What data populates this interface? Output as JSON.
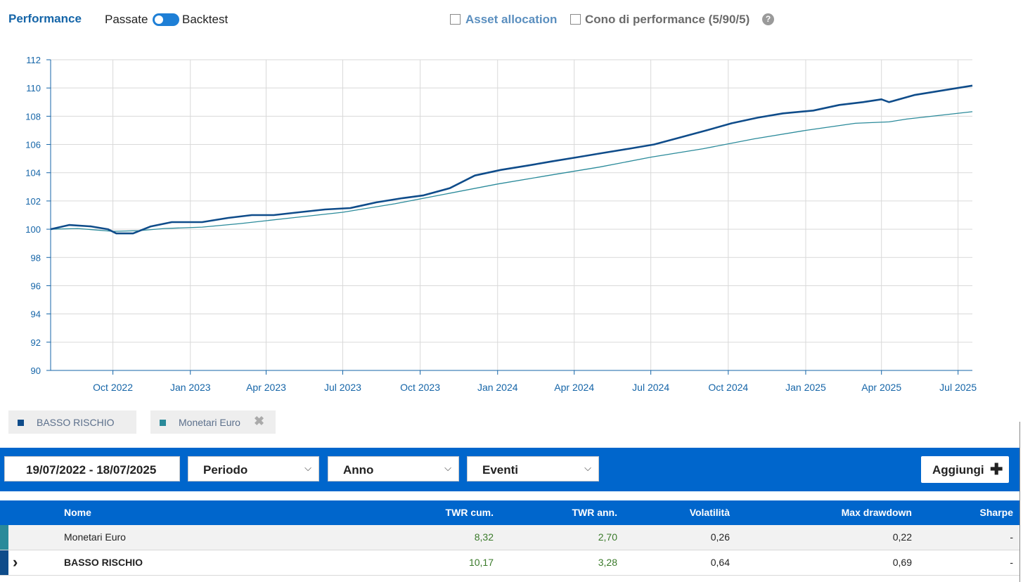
{
  "header": {
    "title": "Performance",
    "toggle_left": "Passate",
    "toggle_right": "Backtest",
    "asset_allocation_label": "Asset allocation",
    "cone_label": "Cono di performance (5/90/5)",
    "help_symbol": "?"
  },
  "chart_data": {
    "type": "line",
    "ylim": [
      90,
      112
    ],
    "yticks": [
      "90",
      "92",
      "94",
      "96",
      "98",
      "100",
      "102",
      "104",
      "106",
      "108",
      "110",
      "112"
    ],
    "xlabels": [
      "Oct 2022",
      "Jan 2023",
      "Apr 2023",
      "Jul 2023",
      "Oct 2023",
      "Jan 2024",
      "Apr 2024",
      "Jul 2024",
      "Oct 2024",
      "Jan 2025",
      "Apr 2025",
      "Jul 2025"
    ],
    "xrange": [
      "2022-07-19",
      "2025-07-18"
    ],
    "grid": true,
    "series": [
      {
        "name": "BASSO RISCHIO",
        "color": "#0f4c8a",
        "points": [
          [
            "2022-07-19",
            100.0
          ],
          [
            "2022-08-10",
            100.3
          ],
          [
            "2022-09-05",
            100.2
          ],
          [
            "2022-09-25",
            100.0
          ],
          [
            "2022-10-05",
            99.7
          ],
          [
            "2022-10-25",
            99.7
          ],
          [
            "2022-11-15",
            100.2
          ],
          [
            "2022-12-10",
            100.5
          ],
          [
            "2023-01-15",
            100.5
          ],
          [
            "2023-02-15",
            100.8
          ],
          [
            "2023-03-15",
            101.0
          ],
          [
            "2023-04-10",
            101.0
          ],
          [
            "2023-05-10",
            101.2
          ],
          [
            "2023-06-10",
            101.4
          ],
          [
            "2023-07-10",
            101.5
          ],
          [
            "2023-08-10",
            101.9
          ],
          [
            "2023-09-10",
            102.2
          ],
          [
            "2023-10-05",
            102.4
          ],
          [
            "2023-11-05",
            102.9
          ],
          [
            "2023-12-05",
            103.8
          ],
          [
            "2024-01-05",
            104.2
          ],
          [
            "2024-02-05",
            104.5
          ],
          [
            "2024-03-05",
            104.8
          ],
          [
            "2024-04-05",
            105.1
          ],
          [
            "2024-05-05",
            105.4
          ],
          [
            "2024-06-05",
            105.7
          ],
          [
            "2024-07-05",
            106.0
          ],
          [
            "2024-08-05",
            106.5
          ],
          [
            "2024-09-05",
            107.0
          ],
          [
            "2024-10-05",
            107.5
          ],
          [
            "2024-11-05",
            107.9
          ],
          [
            "2024-12-05",
            108.2
          ],
          [
            "2025-01-10",
            108.4
          ],
          [
            "2025-02-10",
            108.8
          ],
          [
            "2025-03-10",
            109.0
          ],
          [
            "2025-04-01",
            109.2
          ],
          [
            "2025-04-10",
            109.0
          ],
          [
            "2025-05-10",
            109.5
          ],
          [
            "2025-06-10",
            109.8
          ],
          [
            "2025-07-18",
            110.17
          ]
        ]
      },
      {
        "name": "Monetari Euro",
        "color": "#2a8a9a",
        "points": [
          [
            "2022-07-19",
            100.0
          ],
          [
            "2022-08-20",
            100.05
          ],
          [
            "2022-10-01",
            99.85
          ],
          [
            "2022-11-01",
            99.9
          ],
          [
            "2022-12-01",
            100.05
          ],
          [
            "2023-01-15",
            100.15
          ],
          [
            "2023-03-01",
            100.4
          ],
          [
            "2023-05-01",
            100.8
          ],
          [
            "2023-07-01",
            101.2
          ],
          [
            "2023-09-01",
            101.8
          ],
          [
            "2023-11-01",
            102.5
          ],
          [
            "2024-01-01",
            103.2
          ],
          [
            "2024-03-01",
            103.8
          ],
          [
            "2024-05-01",
            104.4
          ],
          [
            "2024-07-01",
            105.1
          ],
          [
            "2024-09-01",
            105.7
          ],
          [
            "2024-11-01",
            106.4
          ],
          [
            "2025-01-01",
            107.0
          ],
          [
            "2025-03-01",
            107.5
          ],
          [
            "2025-04-10",
            107.6
          ],
          [
            "2025-05-01",
            107.8
          ],
          [
            "2025-07-18",
            108.32
          ]
        ]
      }
    ]
  },
  "legend": [
    {
      "label": "BASSO RISCHIO",
      "color": "#0f4c8a"
    },
    {
      "label": "Monetari Euro",
      "color": "#2a8a9a",
      "remove_icon": "✖"
    }
  ],
  "filters": {
    "date_range": "19/07/2022 - 18/07/2025",
    "periodo": "Periodo",
    "anno": "Anno",
    "eventi": "Eventi",
    "add_label": "Aggiungi"
  },
  "table": {
    "headers": [
      "Nome",
      "TWR cum.",
      "TWR ann.",
      "Volatilità",
      "Max drawdown",
      "Sharpe"
    ],
    "rows": [
      {
        "name": "Monetari Euro",
        "twr_cum": "8,32",
        "twr_ann": "2,70",
        "volatility": "0,26",
        "max_drawdown": "0,22",
        "sharpe": "-",
        "marker_color": "#2a8a9a",
        "expander": ""
      },
      {
        "name": "BASSO RISCHIO",
        "twr_cum": "10,17",
        "twr_ann": "3,28",
        "volatility": "0,64",
        "max_drawdown": "0,69",
        "sharpe": "-",
        "marker_color": "#0f4c8a",
        "expander": "›"
      }
    ]
  }
}
